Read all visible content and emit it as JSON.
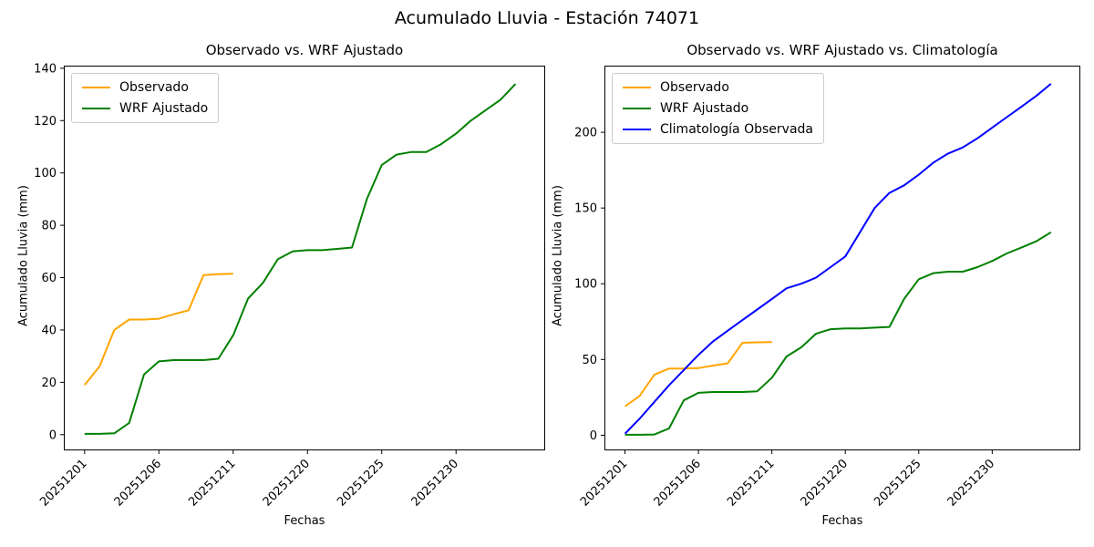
{
  "suptitle": "Acumulado Lluvia - Estación 74071",
  "colors": {
    "observado": "#FFA500",
    "wrf_ajustado": "#008000",
    "climatologia": "#0000FF",
    "axis": "#000000",
    "legend_border": "#cccccc"
  },
  "chart_data": [
    {
      "type": "line",
      "title": "Observado vs. WRF Ajustado",
      "xlabel": "Fechas",
      "ylabel": "Acumulado Lluvia (mm)",
      "legend_position": "upper-left",
      "grid": false,
      "x_tick_labels": [
        "20251201",
        "20251206",
        "20251211",
        "20251220",
        "20251225",
        "20251230"
      ],
      "x_tick_indices": [
        0,
        5,
        10,
        15,
        20,
        25
      ],
      "y_ticks": [
        0,
        20,
        40,
        60,
        80,
        100,
        120,
        140
      ],
      "ylim": [
        -6,
        141
      ],
      "xlim": [
        -1.4,
        31
      ],
      "series": [
        {
          "name": "Observado",
          "color": "#FFA500",
          "values": [
            19,
            26,
            40,
            44,
            44,
            44.3,
            46,
            47.5,
            61,
            61.3,
            61.5
          ]
        },
        {
          "name": "WRF Ajustado",
          "color": "#008000",
          "values": [
            0.3,
            0.3,
            0.5,
            4.5,
            23,
            28,
            28.5,
            28.5,
            28.5,
            29,
            38,
            52,
            58,
            67,
            70,
            70.5,
            70.5,
            71,
            71.5,
            90,
            103,
            107,
            108,
            108,
            111,
            115,
            120,
            124,
            128,
            134
          ]
        }
      ]
    },
    {
      "type": "line",
      "title": "Observado vs. WRF Ajustado vs. Climatología",
      "xlabel": "Fechas",
      "ylabel": "Acumulado Lluvia (mm)",
      "legend_position": "upper-left",
      "grid": false,
      "x_tick_labels": [
        "20251201",
        "20251206",
        "20251211",
        "20251220",
        "20251225",
        "20251230"
      ],
      "x_tick_indices": [
        0,
        5,
        10,
        15,
        20,
        25
      ],
      "y_ticks": [
        0,
        50,
        100,
        150,
        200
      ],
      "ylim": [
        -10,
        244
      ],
      "xlim": [
        -1.4,
        31
      ],
      "series": [
        {
          "name": "Observado",
          "color": "#FFA500",
          "values": [
            19,
            26,
            40,
            44,
            44,
            44.3,
            46,
            47.5,
            61,
            61.3,
            61.5
          ]
        },
        {
          "name": "WRF Ajustado",
          "color": "#008000",
          "values": [
            0.3,
            0.3,
            0.5,
            4.5,
            23,
            28,
            28.5,
            28.5,
            28.5,
            29,
            38,
            52,
            58,
            67,
            70,
            70.5,
            70.5,
            71,
            71.5,
            90,
            103,
            107,
            108,
            108,
            111,
            115,
            120,
            124,
            128,
            134
          ]
        },
        {
          "name": "Climatología Observada",
          "color": "#0000FF",
          "values": [
            1,
            11,
            22,
            33,
            43,
            53,
            62,
            69,
            76,
            83,
            90,
            97,
            100,
            104,
            111,
            118,
            134,
            150,
            160,
            165,
            172,
            180,
            186,
            190,
            196,
            203,
            210,
            217,
            224,
            232
          ]
        }
      ]
    }
  ]
}
